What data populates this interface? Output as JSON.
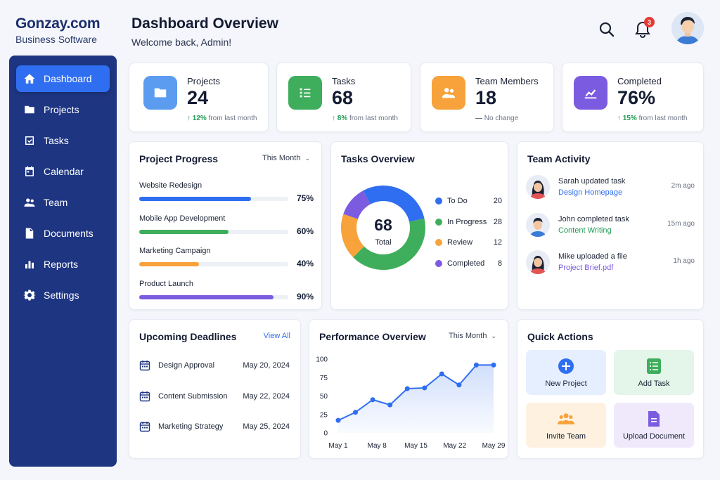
{
  "brand": {
    "name": "Gonzay.com",
    "tagline": "Business Software"
  },
  "sidebar": {
    "items": [
      {
        "label": "Dashboard",
        "icon": "home-icon",
        "active": true
      },
      {
        "label": "Projects",
        "icon": "folder-icon"
      },
      {
        "label": "Tasks",
        "icon": "checkbox-icon"
      },
      {
        "label": "Calendar",
        "icon": "calendar-icon"
      },
      {
        "label": "Team",
        "icon": "people-icon"
      },
      {
        "label": "Documents",
        "icon": "document-icon"
      },
      {
        "label": "Reports",
        "icon": "bar-chart-icon"
      },
      {
        "label": "Settings",
        "icon": "gear-icon"
      }
    ]
  },
  "header": {
    "title": "Dashboard Overview",
    "subtitle": "Welcome back, Admin!",
    "notification_count": "3"
  },
  "stats": [
    {
      "label": "Projects",
      "value": "24",
      "trend_pct": "12%",
      "trend_text": "from last month",
      "color": "#5b9cf0"
    },
    {
      "label": "Tasks",
      "value": "68",
      "trend_pct": "8%",
      "trend_text": "from last month",
      "color": "#3fae5c"
    },
    {
      "label": "Team Members",
      "value": "18",
      "trend_pct": "",
      "trend_text": "No change",
      "color": "#f7a23a"
    },
    {
      "label": "Completed",
      "value": "76%",
      "trend_pct": "15%",
      "trend_text": "from last month",
      "color": "#7b5be0"
    }
  ],
  "project_progress": {
    "title": "Project Progress",
    "period": "This Month",
    "projects": [
      {
        "name": "Website Redesign",
        "percent_label": "75%",
        "fraction": 0.75,
        "color": "#2f6ef0"
      },
      {
        "name": "Mobile App Development",
        "percent_label": "60%",
        "fraction": 0.6,
        "color": "#3fae5c"
      },
      {
        "name": "Marketing Campaign",
        "percent_label": "40%",
        "fraction": 0.4,
        "color": "#f7a23a"
      },
      {
        "name": "Product Launch",
        "percent_label": "90%",
        "fraction": 0.9,
        "color": "#7b5be0"
      }
    ]
  },
  "tasks_overview": {
    "title": "Tasks Overview",
    "total_value": "68",
    "total_label": "Total",
    "segments": [
      {
        "name": "To Do",
        "value": 20,
        "color": "#2f6ef0"
      },
      {
        "name": "In Progress",
        "value": 28,
        "color": "#3fae5c"
      },
      {
        "name": "Review",
        "value": 12,
        "color": "#f7a23a"
      },
      {
        "name": "Completed",
        "value": 8,
        "color": "#7b5be0"
      }
    ]
  },
  "team_activity": {
    "title": "Team Activity",
    "items": [
      {
        "text": "Sarah updated task",
        "target": "Design Homepage",
        "target_color": "#2f6ef0",
        "time": "2m ago",
        "avatar": "female"
      },
      {
        "text": "John completed task",
        "target": "Content Writing",
        "target_color": "#1f9a52",
        "time": "15m ago",
        "avatar": "male"
      },
      {
        "text": "Mike uploaded a file",
        "target": "Project Brief.pdf",
        "target_color": "#7b5be0",
        "time": "1h ago",
        "avatar": "female"
      }
    ]
  },
  "deadlines": {
    "title": "Upcoming Deadlines",
    "view_all": "View All",
    "items": [
      {
        "name": "Design Approval",
        "date": "May 20, 2024"
      },
      {
        "name": "Content Submission",
        "date": "May 22, 2024"
      },
      {
        "name": "Marketing Strategy",
        "date": "May 25, 2024"
      }
    ]
  },
  "performance": {
    "title": "Performance Overview",
    "period": "This Month"
  },
  "quick_actions": {
    "title": "Quick Actions",
    "items": [
      {
        "label": "New Project",
        "icon": "plus-circle-icon",
        "bg": "#e6efff",
        "color": "#2f6ef0"
      },
      {
        "label": "Add Task",
        "icon": "task-list-icon",
        "bg": "#e4f5ea",
        "color": "#3fae5c"
      },
      {
        "label": "Invite Team",
        "icon": "people-icon",
        "bg": "#fff1e0",
        "color": "#f7a23a"
      },
      {
        "label": "Upload Document",
        "icon": "document-icon",
        "bg": "#efe9fb",
        "color": "#7b5be0"
      }
    ]
  },
  "chart_data": {
    "type": "line",
    "x": [
      "May 1",
      "May 4",
      "May 6",
      "May 8",
      "May 12",
      "May 15",
      "May 18",
      "May 22",
      "May 25",
      "May 29"
    ],
    "xticks": [
      "May 1",
      "May 8",
      "May 15",
      "May 22",
      "May 29"
    ],
    "series": [
      {
        "values": [
          17,
          28,
          45,
          38,
          60,
          61,
          80,
          65,
          92,
          92
        ]
      }
    ],
    "ylim": [
      0,
      100
    ],
    "yticks": [
      "100",
      "75",
      "50",
      "25",
      "0"
    ],
    "grid": false,
    "color": "#2f6ef0"
  }
}
